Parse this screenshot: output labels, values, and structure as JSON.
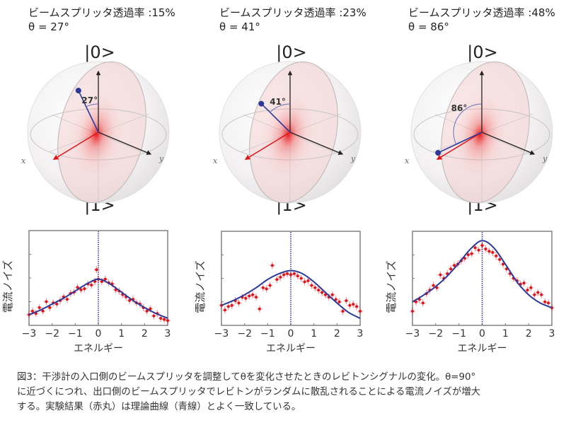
{
  "panels": [
    {
      "transmittance_label": "ビームスプリッタ透過率 :15%",
      "theta_label": "θ = 27°",
      "theta_deg": 27,
      "ket_top": "|0>",
      "ket_bottom": "|1>",
      "angle_label": "27°",
      "axis_x": "x",
      "axis_y": "y"
    },
    {
      "transmittance_label": "ビームスプリッタ透過率 :23%",
      "theta_label": "θ = 41°",
      "theta_deg": 41,
      "ket_top": "|0>",
      "ket_bottom": "|1>",
      "angle_label": "41°",
      "axis_x": "x",
      "axis_y": "y"
    },
    {
      "transmittance_label": "ビームスプリッタ透過率 :48%",
      "theta_label": "θ = 86°",
      "theta_deg": 86,
      "ket_top": "|0>",
      "ket_bottom": "|1>",
      "angle_label": "86°",
      "axis_x": "x",
      "axis_y": "y"
    }
  ],
  "colors": {
    "experiment": "#e0151a",
    "theory": "#2b3a9a",
    "zero_line": "#2b2f8f",
    "frame": "#8a8a8a",
    "sphere_tint": "#f3c9c9",
    "x_axis_arrow": "#e0151a",
    "y_axis_arrow": "#222222",
    "z_axis_arrow": "#222222",
    "state_vector": "#2b3a9a"
  },
  "chart_data": [
    {
      "type": "scatter",
      "title": "ビームスプリッタ透過率 :15%, θ = 27°",
      "xlabel": "エネルギー",
      "ylabel": "電流ノイズ",
      "xlim": [
        -3,
        3
      ],
      "ylim": [
        0,
        4
      ],
      "xticks": [
        "−3",
        "−2",
        "−1",
        "0",
        "1",
        "2",
        "3"
      ],
      "yticks_unlabeled": [
        1,
        2,
        3
      ],
      "grid": false,
      "vline_x": 0,
      "series": [
        {
          "name": "実験結果（赤丸）",
          "x": [
            -3.0,
            -2.85,
            -2.7,
            -2.55,
            -2.4,
            -2.25,
            -2.1,
            -1.95,
            -1.8,
            -1.65,
            -1.5,
            -1.35,
            -1.2,
            -1.05,
            -0.9,
            -0.75,
            -0.6,
            -0.45,
            -0.3,
            -0.15,
            -0.08,
            0.0,
            0.15,
            0.3,
            0.45,
            0.6,
            0.75,
            0.9,
            1.05,
            1.2,
            1.35,
            1.5,
            1.65,
            1.8,
            1.95,
            2.1,
            2.25,
            2.4,
            2.55,
            2.7,
            2.85,
            3.0
          ],
          "y": [
            0.45,
            0.6,
            0.5,
            0.75,
            0.6,
            1.0,
            0.75,
            0.95,
            0.9,
            1.05,
            1.2,
            1.1,
            1.35,
            1.4,
            1.6,
            1.5,
            1.55,
            1.75,
            1.7,
            1.85,
            2.35,
            1.95,
            1.85,
            1.95,
            1.8,
            1.75,
            1.5,
            1.45,
            1.3,
            1.2,
            1.05,
            1.1,
            0.95,
            0.9,
            0.75,
            0.6,
            0.7,
            0.4,
            0.5,
            0.3,
            0.25,
            0.2
          ]
        },
        {
          "name": "理論曲線（青線）",
          "x": [
            -3,
            -2.5,
            -2,
            -1.5,
            -1,
            -0.5,
            0,
            0.5,
            1,
            1.5,
            2,
            2.5,
            3
          ],
          "y": [
            0.45,
            0.65,
            0.9,
            1.15,
            1.45,
            1.75,
            1.95,
            1.75,
            1.4,
            1.05,
            0.75,
            0.5,
            0.3
          ]
        }
      ]
    },
    {
      "type": "scatter",
      "title": "ビームスプリッタ透過率 :23%, θ = 41°",
      "xlabel": "エネルギー",
      "ylabel": "電流ノイズ",
      "xlim": [
        -3,
        3
      ],
      "ylim": [
        0,
        4
      ],
      "xticks": [
        "−3",
        "−2",
        "−1",
        "0",
        "1",
        "2",
        "3"
      ],
      "yticks_unlabeled": [
        1,
        2,
        3
      ],
      "grid": false,
      "vline_x": 0,
      "series": [
        {
          "name": "実験結果（赤丸）",
          "x": [
            -3.0,
            -2.85,
            -2.7,
            -2.55,
            -2.4,
            -2.25,
            -2.1,
            -1.95,
            -1.8,
            -1.65,
            -1.5,
            -1.35,
            -1.2,
            -1.05,
            -0.9,
            -0.8,
            -0.6,
            -0.45,
            -0.3,
            -0.15,
            0.0,
            0.15,
            0.3,
            0.45,
            0.6,
            0.75,
            0.9,
            1.05,
            1.2,
            1.35,
            1.5,
            1.65,
            1.8,
            1.95,
            2.1,
            2.25,
            2.4,
            2.55,
            2.7,
            2.85,
            3.0
          ],
          "y": [
            0.85,
            0.65,
            0.8,
            0.85,
            1.05,
            0.95,
            1.2,
            1.15,
            1.25,
            1.3,
            1.2,
            0.7,
            1.6,
            1.55,
            1.7,
            2.55,
            1.95,
            2.05,
            2.15,
            2.2,
            2.15,
            2.2,
            2.1,
            2.0,
            1.85,
            1.9,
            1.7,
            1.6,
            1.5,
            1.4,
            1.3,
            1.2,
            1.3,
            1.1,
            1.0,
            0.6,
            1.05,
            0.85,
            0.9,
            0.8,
            0.6
          ]
        },
        {
          "name": "理論曲線（青線）",
          "x": [
            -3,
            -2.5,
            -2,
            -1.5,
            -1,
            -0.5,
            0,
            0.5,
            1,
            1.5,
            2,
            2.5,
            3
          ],
          "y": [
            0.85,
            1.05,
            1.3,
            1.6,
            1.95,
            2.2,
            2.33,
            2.2,
            1.85,
            1.4,
            0.95,
            0.55,
            0.3
          ]
        }
      ]
    },
    {
      "type": "scatter",
      "title": "ビームスプリッタ透過率 :48%, θ = 86°",
      "xlabel": "エネルギー",
      "ylabel": "電流ノイズ",
      "xlim": [
        -3,
        3
      ],
      "ylim": [
        0,
        4
      ],
      "xticks": [
        "−3",
        "−2",
        "−1",
        "0",
        "1",
        "2",
        "3"
      ],
      "yticks_unlabeled": [
        1,
        2,
        3
      ],
      "grid": false,
      "vline_x": 0,
      "series": [
        {
          "name": "実験結果（赤丸）",
          "x": [
            -3.0,
            -2.85,
            -2.7,
            -2.55,
            -2.4,
            -2.25,
            -2.1,
            -1.95,
            -1.8,
            -1.65,
            -1.5,
            -1.35,
            -1.2,
            -1.05,
            -0.9,
            -0.75,
            -0.6,
            -0.45,
            -0.3,
            -0.15,
            0.0,
            0.15,
            0.3,
            0.45,
            0.6,
            0.75,
            0.9,
            1.05,
            1.2,
            1.35,
            1.5,
            1.65,
            1.8,
            1.95,
            2.1,
            2.25,
            2.4,
            2.55,
            2.7,
            2.85,
            3.0
          ],
          "y": [
            0.6,
            1.0,
            1.1,
            0.95,
            1.35,
            1.5,
            1.7,
            1.6,
            2.15,
            2.0,
            2.2,
            2.4,
            2.55,
            2.6,
            2.75,
            2.85,
            3.0,
            3.05,
            3.3,
            3.2,
            3.4,
            3.25,
            3.15,
            3.1,
            2.95,
            2.8,
            2.6,
            2.4,
            2.2,
            2.0,
            1.9,
            1.75,
            1.8,
            1.5,
            1.6,
            1.3,
            1.4,
            1.3,
            1.0,
            0.95,
            0.75
          ]
        },
        {
          "name": "理論曲線（青線）",
          "x": [
            -3,
            -2.5,
            -2,
            -1.5,
            -1,
            -0.5,
            0,
            0.5,
            1,
            1.5,
            2,
            2.5,
            3
          ],
          "y": [
            1.0,
            1.3,
            1.65,
            2.1,
            2.65,
            3.25,
            3.6,
            3.3,
            2.6,
            1.85,
            1.3,
            0.95,
            0.75
          ]
        }
      ]
    }
  ],
  "caption": {
    "lines": [
      "図3：干渉計の入口側のビームスプリッタを調整してθを変化させたときのレビトンシグナルの変化。θ=90°",
      "に近づくにつれ、出口側のビームスプリッタでレビトンがランダムに散乱されることによる電流ノイズが増大",
      "する。実験結果（赤丸）は理論曲線（青線）とよく一致している。"
    ]
  }
}
